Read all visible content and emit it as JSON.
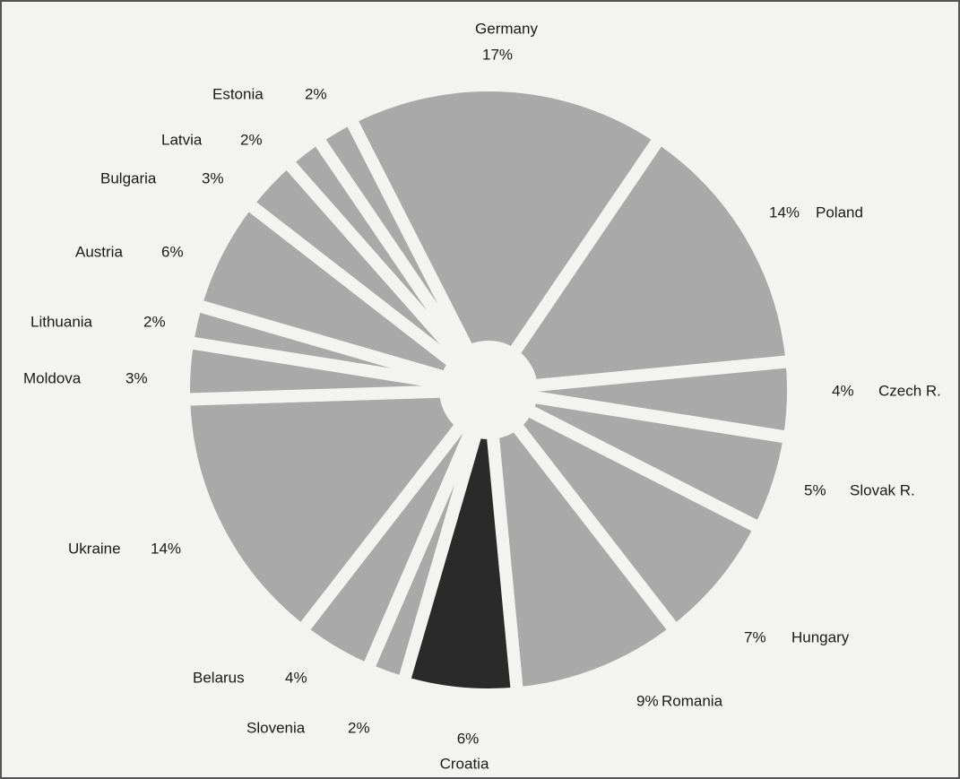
{
  "chart_data": {
    "type": "pie",
    "categories": [
      "Germany",
      "Poland",
      "Czech R.",
      "Slovak R.",
      "Hungary",
      "Romania",
      "Croatia",
      "Slovenia",
      "Belarus",
      "Ukraine",
      "Moldova",
      "Lithuania",
      "Austria",
      "Bulgaria",
      "Latvia",
      "Estonia"
    ],
    "values": [
      17,
      14,
      4,
      5,
      7,
      9,
      6,
      2,
      4,
      14,
      3,
      2,
      6,
      3,
      2,
      2
    ],
    "value_labels": [
      "17%",
      "14%",
      "4%",
      "5%",
      "7%",
      "9%",
      "6%",
      "2%",
      "4%",
      "14%",
      "3%",
      "2%",
      "6%",
      "3%",
      "2%",
      "2%"
    ],
    "colors": [
      "#a9a9a9",
      "#a9a9a9",
      "#a9a9a9",
      "#a9a9a9",
      "#a9a9a9",
      "#a9a9a9",
      "#2a2a2a",
      "#a9a9a9",
      "#a9a9a9",
      "#a9a9a9",
      "#a9a9a9",
      "#a9a9a9",
      "#a9a9a9",
      "#a9a9a9",
      "#a9a9a9",
      "#a9a9a9"
    ]
  }
}
